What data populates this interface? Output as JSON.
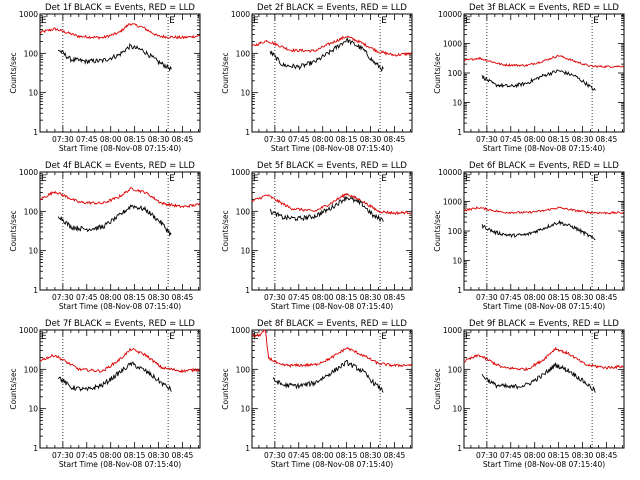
{
  "colors": {
    "events": "#000000",
    "lld": "#dd0000",
    "axes": "#000000"
  },
  "chart_data": [
    {
      "type": "line",
      "title": "Det 1f BLACK = Events, RED = LLD",
      "xlabel": "Start Time (08-Nov-08 07:15:40)",
      "ylabel": "Counts/sec",
      "yscale": "log",
      "ylim": [
        1,
        1000
      ],
      "xlim": [
        "07:15:40",
        "08:56:00"
      ],
      "x_ticks": [
        "07:30",
        "07:45",
        "08:00",
        "08:15",
        "08:30",
        "08:45"
      ],
      "y_ticks": [
        "1",
        "10",
        "100",
        "1000"
      ],
      "markers": [
        {
          "time": "07:15:40",
          "label": "E"
        },
        {
          "time": "08:36:00",
          "label": "E"
        }
      ],
      "dotted_lines": [
        "07:30",
        "08:36"
      ],
      "series": [
        {
          "name": "LLD",
          "color": "red",
          "x": [
            "07:15:40",
            "07:25",
            "07:40",
            "07:55",
            "08:05",
            "08:12",
            "08:20",
            "08:30",
            "08:45",
            "08:56"
          ],
          "y": [
            340,
            420,
            270,
            250,
            330,
            570,
            460,
            270,
            250,
            280
          ]
        },
        {
          "name": "Events",
          "color": "black",
          "x": [
            "07:27",
            "07:35",
            "07:45",
            "07:55",
            "08:05",
            "08:12",
            "08:20",
            "08:30",
            "08:38"
          ],
          "y": [
            125,
            70,
            62,
            65,
            90,
            150,
            120,
            60,
            40
          ]
        }
      ]
    },
    {
      "type": "line",
      "title": "Det 2f BLACK = Events, RED = LLD",
      "xlabel": "Start Time (08-Nov-08 07:15:40)",
      "ylabel": "Counts/sec",
      "yscale": "log",
      "ylim": [
        1,
        1000
      ],
      "xlim": [
        "07:15:40",
        "08:56:00"
      ],
      "x_ticks": [
        "07:30",
        "07:45",
        "08:00",
        "08:15",
        "08:30",
        "08:45"
      ],
      "y_ticks": [
        "1",
        "10",
        "100",
        "1000"
      ],
      "markers": [
        {
          "time": "07:15:40",
          "label": "E"
        },
        {
          "time": "08:36:00",
          "label": "E"
        }
      ],
      "dotted_lines": [
        "07:30",
        "08:36"
      ],
      "series": [
        {
          "name": "LLD",
          "color": "red",
          "x": [
            "07:15:40",
            "07:25",
            "07:40",
            "07:55",
            "08:05",
            "08:15",
            "08:25",
            "08:35",
            "08:45",
            "08:56"
          ],
          "y": [
            150,
            210,
            120,
            115,
            180,
            270,
            180,
            110,
            90,
            100
          ]
        },
        {
          "name": "Events",
          "color": "black",
          "x": [
            "07:27",
            "07:35",
            "07:45",
            "07:55",
            "08:05",
            "08:15",
            "08:25",
            "08:32",
            "08:38"
          ],
          "y": [
            110,
            50,
            45,
            60,
            110,
            220,
            130,
            60,
            38
          ]
        }
      ]
    },
    {
      "type": "line",
      "title": "Det 3f BLACK = Events, RED = LLD",
      "xlabel": "Start Time (08-Nov-08 07:15:40)",
      "ylabel": "Counts/sec",
      "yscale": "log",
      "ylim": [
        1,
        10000
      ],
      "xlim": [
        "07:15:40",
        "08:56:00"
      ],
      "x_ticks": [
        "07:30",
        "07:45",
        "08:00",
        "08:15",
        "08:30",
        "08:45"
      ],
      "y_ticks": [
        "1",
        "10",
        "100",
        "1000",
        "10000"
      ],
      "markers": [
        {
          "time": "07:15:40",
          "label": "E"
        },
        {
          "time": "08:36:00",
          "label": "E"
        }
      ],
      "dotted_lines": [
        "07:30",
        "08:36"
      ],
      "series": [
        {
          "name": "LLD",
          "color": "red",
          "x": [
            "07:15:40",
            "07:25",
            "07:40",
            "07:55",
            "08:05",
            "08:15",
            "08:25",
            "08:35",
            "08:45",
            "08:56"
          ],
          "y": [
            260,
            320,
            190,
            180,
            250,
            390,
            250,
            170,
            165,
            170
          ]
        },
        {
          "name": "Events",
          "color": "black",
          "x": [
            "07:27",
            "07:35",
            "07:45",
            "07:55",
            "08:05",
            "08:15",
            "08:25",
            "08:32",
            "08:38"
          ],
          "y": [
            75,
            40,
            35,
            45,
            80,
            120,
            80,
            45,
            25
          ]
        }
      ]
    },
    {
      "type": "line",
      "title": "Det 4f BLACK = Events, RED = LLD",
      "xlabel": "Start Time (08-Nov-08 07:15:40)",
      "ylabel": "Counts/sec",
      "yscale": "log",
      "ylim": [
        1,
        1000
      ],
      "xlim": [
        "07:15:40",
        "08:56:00"
      ],
      "x_ticks": [
        "07:30",
        "07:45",
        "08:00",
        "08:15",
        "08:30",
        "08:45"
      ],
      "y_ticks": [
        "1",
        "10",
        "100",
        "1000"
      ],
      "markers": [
        {
          "time": "07:15:40",
          "label": "E"
        },
        {
          "time": "08:36:00",
          "label": "E"
        }
      ],
      "dotted_lines": [
        "07:30",
        "08:36"
      ],
      "series": [
        {
          "name": "LLD",
          "color": "red",
          "x": [
            "07:15:40",
            "07:25",
            "07:40",
            "07:55",
            "08:05",
            "08:13",
            "08:22",
            "08:32",
            "08:45",
            "08:56"
          ],
          "y": [
            200,
            320,
            170,
            160,
            230,
            380,
            300,
            160,
            130,
            150
          ]
        },
        {
          "name": "Events",
          "color": "black",
          "x": [
            "07:27",
            "07:35",
            "07:45",
            "07:55",
            "08:05",
            "08:13",
            "08:22",
            "08:32",
            "08:38"
          ],
          "y": [
            80,
            40,
            35,
            40,
            75,
            140,
            110,
            50,
            25
          ]
        }
      ]
    },
    {
      "type": "line",
      "title": "Det 5f BLACK = Events, RED = LLD",
      "xlabel": "Start Time (08-Nov-08 07:15:40)",
      "ylabel": "Counts/sec",
      "yscale": "log",
      "ylim": [
        1,
        1000
      ],
      "xlim": [
        "07:15:40",
        "08:56:00"
      ],
      "x_ticks": [
        "07:30",
        "07:45",
        "08:00",
        "08:15",
        "08:30",
        "08:45"
      ],
      "y_ticks": [
        "1",
        "10",
        "100",
        "1000"
      ],
      "markers": [
        {
          "time": "07:15:40",
          "label": "E"
        },
        {
          "time": "08:36:00",
          "label": "E"
        }
      ],
      "dotted_lines": [
        "07:30",
        "08:36"
      ],
      "series": [
        {
          "name": "LLD",
          "color": "red",
          "x": [
            "07:15:40",
            "07:25",
            "07:40",
            "07:55",
            "08:05",
            "08:15",
            "08:25",
            "08:35",
            "08:45",
            "08:56"
          ],
          "y": [
            180,
            260,
            120,
            100,
            160,
            280,
            180,
            100,
            90,
            95
          ]
        },
        {
          "name": "Events",
          "color": "black",
          "x": [
            "07:27",
            "07:35",
            "07:45",
            "07:55",
            "08:05",
            "08:15",
            "08:25",
            "08:32",
            "08:38"
          ],
          "y": [
            100,
            70,
            65,
            75,
            120,
            230,
            150,
            75,
            60
          ]
        }
      ]
    },
    {
      "type": "line",
      "title": "Det 6f BLACK = Events, RED = LLD",
      "xlabel": "Start Time (08-Nov-08 07:15:40)",
      "ylabel": "Counts/sec",
      "yscale": "log",
      "ylim": [
        1,
        10000
      ],
      "xlim": [
        "07:15:40",
        "08:56:00"
      ],
      "x_ticks": [
        "07:30",
        "07:45",
        "08:00",
        "08:15",
        "08:30",
        "08:45"
      ],
      "y_ticks": [
        "1",
        "10",
        "100",
        "1000",
        "10000"
      ],
      "markers": [
        {
          "time": "07:15:40",
          "label": "E"
        },
        {
          "time": "08:36:00",
          "label": "E"
        }
      ],
      "dotted_lines": [
        "07:30",
        "08:36"
      ],
      "series": [
        {
          "name": "LLD",
          "color": "red",
          "x": [
            "07:15:40",
            "07:25",
            "07:40",
            "07:55",
            "08:05",
            "08:15",
            "08:25",
            "08:35",
            "08:45",
            "08:56"
          ],
          "y": [
            500,
            620,
            430,
            420,
            480,
            620,
            500,
            420,
            410,
            420
          ]
        },
        {
          "name": "Events",
          "color": "black",
          "x": [
            "07:27",
            "07:35",
            "07:45",
            "07:55",
            "08:05",
            "08:15",
            "08:25",
            "08:32",
            "08:38"
          ],
          "y": [
            150,
            90,
            70,
            75,
            120,
            200,
            130,
            80,
            50
          ]
        }
      ]
    },
    {
      "type": "line",
      "title": "Det 7f BLACK = Events, RED = LLD",
      "xlabel": "Start Time (08-Nov-08 07:15:40)",
      "ylabel": "Counts/sec",
      "yscale": "log",
      "ylim": [
        1,
        1000
      ],
      "xlim": [
        "07:15:40",
        "08:56:00"
      ],
      "x_ticks": [
        "07:30",
        "07:45",
        "08:00",
        "08:15",
        "08:30",
        "08:45"
      ],
      "y_ticks": [
        "1",
        "10",
        "100",
        "1000"
      ],
      "markers": [
        {
          "time": "07:15:40",
          "label": "E"
        },
        {
          "time": "08:36:00",
          "label": "E"
        }
      ],
      "dotted_lines": [
        "07:30",
        "08:36"
      ],
      "series": [
        {
          "name": "LLD",
          "color": "red",
          "x": [
            "07:15:40",
            "07:25",
            "07:40",
            "07:55",
            "08:05",
            "08:13",
            "08:22",
            "08:32",
            "08:45",
            "08:56"
          ],
          "y": [
            170,
            230,
            100,
            90,
            170,
            330,
            230,
            110,
            90,
            100
          ]
        },
        {
          "name": "Events",
          "color": "black",
          "x": [
            "07:27",
            "07:35",
            "07:45",
            "07:55",
            "08:05",
            "08:13",
            "08:22",
            "08:32",
            "08:38"
          ],
          "y": [
            65,
            35,
            30,
            40,
            80,
            140,
            90,
            45,
            30
          ]
        }
      ]
    },
    {
      "type": "line",
      "title": "Det 8f BLACK = Events, RED = LLD",
      "xlabel": "Start Time (08-Nov-08 07:15:40)",
      "ylabel": "Counts/sec",
      "yscale": "log",
      "ylim": [
        1,
        1000
      ],
      "xlim": [
        "07:15:40",
        "08:56:00"
      ],
      "x_ticks": [
        "07:30",
        "07:45",
        "08:00",
        "08:15",
        "08:30",
        "08:45"
      ],
      "y_ticks": [
        "1",
        "10",
        "100",
        "1000"
      ],
      "markers": [
        {
          "time": "07:15:40",
          "label": "E"
        },
        {
          "time": "08:36:00",
          "label": "E"
        }
      ],
      "dotted_lines": [
        "07:30",
        "08:36"
      ],
      "series": [
        {
          "name": "LLD",
          "color": "red",
          "x": [
            "07:15:40",
            "07:20",
            "07:24",
            "07:26",
            "07:33",
            "07:40",
            "07:55",
            "08:05",
            "08:15",
            "08:25",
            "08:35",
            "08:45",
            "08:56"
          ],
          "y": [
            700,
            720,
            1000,
            200,
            130,
            125,
            130,
            190,
            350,
            230,
            140,
            125,
            130
          ]
        },
        {
          "name": "Events",
          "color": "black",
          "x": [
            "07:29",
            "07:35",
            "07:45",
            "07:55",
            "08:05",
            "08:15",
            "08:25",
            "08:32",
            "08:38"
          ],
          "y": [
            55,
            40,
            38,
            45,
            80,
            150,
            90,
            45,
            28
          ]
        }
      ]
    },
    {
      "type": "line",
      "title": "Det 9f BLACK = Events, RED = LLD",
      "xlabel": "Start Time (08-Nov-08 07:15:40)",
      "ylabel": "Counts/sec",
      "yscale": "log",
      "ylim": [
        1,
        1000
      ],
      "xlim": [
        "07:15:40",
        "08:56:00"
      ],
      "x_ticks": [
        "07:30",
        "07:45",
        "08:00",
        "08:15",
        "08:30",
        "08:45"
      ],
      "y_ticks": [
        "1",
        "10",
        "100",
        "1000"
      ],
      "markers": [
        {
          "time": "07:15:40",
          "label": "E"
        },
        {
          "time": "08:36:00",
          "label": "E"
        }
      ],
      "dotted_lines": [
        "07:30",
        "08:36"
      ],
      "series": [
        {
          "name": "LLD",
          "color": "red",
          "x": [
            "07:15:40",
            "07:25",
            "07:40",
            "07:55",
            "08:05",
            "08:13",
            "08:22",
            "08:32",
            "08:45",
            "08:56"
          ],
          "y": [
            160,
            230,
            110,
            100,
            170,
            340,
            240,
            130,
            110,
            120
          ]
        },
        {
          "name": "Events",
          "color": "black",
          "x": [
            "07:27",
            "07:35",
            "07:45",
            "07:55",
            "08:05",
            "08:13",
            "08:22",
            "08:32",
            "08:38"
          ],
          "y": [
            70,
            40,
            35,
            40,
            70,
            130,
            90,
            45,
            28
          ]
        }
      ]
    }
  ]
}
